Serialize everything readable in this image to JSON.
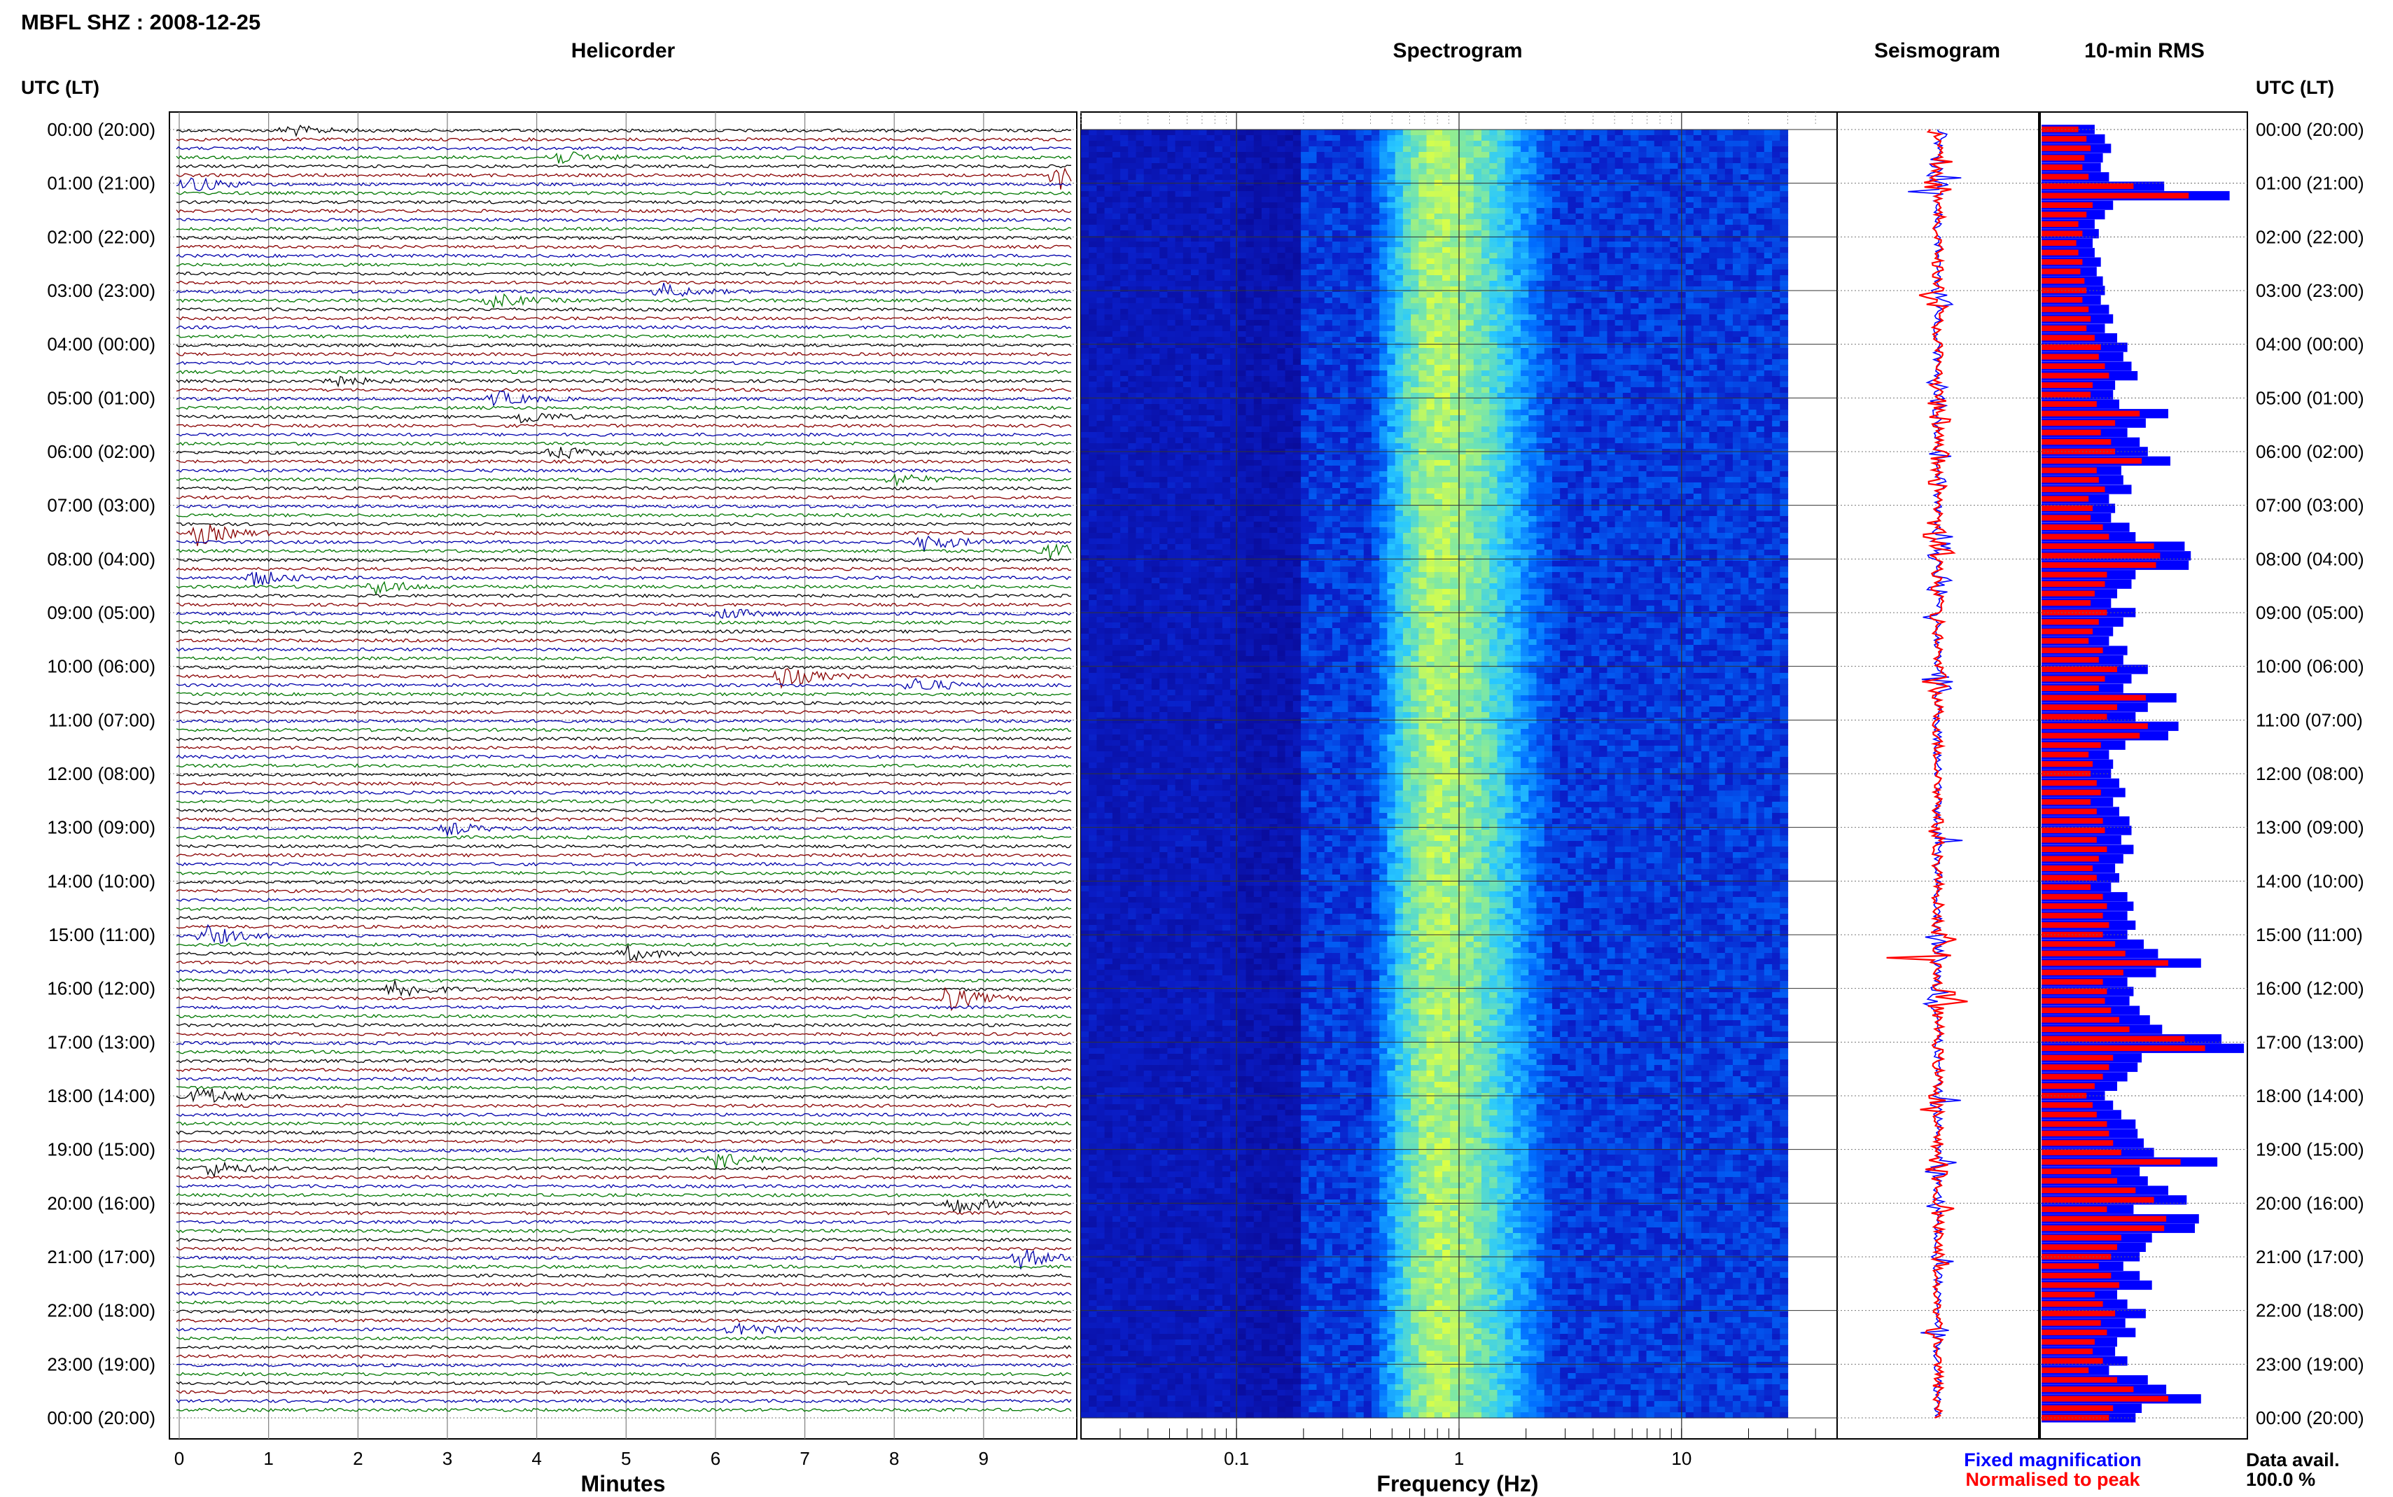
{
  "header": {
    "station": "MBFL SHZ : 2008-12-25"
  },
  "panels": {
    "helicorder_title": "Helicorder",
    "spectrogram_title": "Spectrogram",
    "seismogram_title": "Seismogram",
    "rms_title": "10-min RMS"
  },
  "axes": {
    "time_header_left": "UTC (LT)",
    "time_header_right": "UTC (LT)",
    "minutes_label": "Minutes",
    "frequency_label": "Frequency (Hz)"
  },
  "legend": {
    "fixed_label": "Fixed magnification",
    "fixed_color": "#0000ff",
    "normalised_label": "Normalised to peak",
    "normalised_color": "#ff0000",
    "avail_label": "Data avail.",
    "avail_value": "100.0 %"
  },
  "colors": {
    "trace_cycle": [
      "#000000",
      "#880000",
      "#0000aa",
      "#007700"
    ],
    "spectrogram_dark": "#0a0ab4",
    "spectrogram_mid": "#0078ff",
    "spectrogram_cyan": "#28d2ff",
    "spectrogram_peak": "#d2ff3c",
    "grid": "#808080"
  },
  "chart_data": [
    {
      "type": "line",
      "title": "Helicorder",
      "xlabel": "Minutes",
      "ylabel": "UTC (LT)",
      "x_ticks": [
        "0",
        "1",
        "2",
        "3",
        "4",
        "5",
        "6",
        "7",
        "8",
        "9"
      ],
      "xlim": [
        0,
        10
      ],
      "y_ticks": [
        "00:00 (20:00)",
        "01:00 (21:00)",
        "02:00 (22:00)",
        "03:00 (23:00)",
        "04:00 (00:00)",
        "05:00 (01:00)",
        "06:00 (02:00)",
        "07:00 (03:00)",
        "08:00 (04:00)",
        "09:00 (05:00)",
        "10:00 (06:00)",
        "11:00 (07:00)",
        "12:00 (08:00)",
        "13:00 (09:00)",
        "14:00 (10:00)",
        "15:00 (11:00)",
        "16:00 (12:00)",
        "17:00 (13:00)",
        "18:00 (14:00)",
        "19:00 (15:00)",
        "20:00 (16:00)",
        "21:00 (17:00)",
        "22:00 (18:00)",
        "23:00 (19:00)",
        "00:00 (20:00)"
      ],
      "traces_per_hour": 6,
      "events": [
        {
          "hour_index": 0,
          "trace": 0,
          "minute": 1.2,
          "amp": 0.4
        },
        {
          "hour_index": 0,
          "trace": 3,
          "minute": 4.2,
          "amp": 0.5
        },
        {
          "hour_index": 1,
          "trace": 0,
          "minute": 0.1,
          "amp": 0.6
        },
        {
          "hour_index": 0,
          "trace": 5,
          "minute": 9.8,
          "amp": 1.1
        },
        {
          "hour_index": 3,
          "trace": 0,
          "minute": 5.4,
          "amp": 0.5
        },
        {
          "hour_index": 3,
          "trace": 1,
          "minute": 3.5,
          "amp": 0.5
        },
        {
          "hour_index": 4,
          "trace": 4,
          "minute": 1.6,
          "amp": 0.5
        },
        {
          "hour_index": 5,
          "trace": 0,
          "minute": 3.5,
          "amp": 0.6
        },
        {
          "hour_index": 5,
          "trace": 2,
          "minute": 3.8,
          "amp": 0.5
        },
        {
          "hour_index": 6,
          "trace": 0,
          "minute": 4.2,
          "amp": 0.5
        },
        {
          "hour_index": 6,
          "trace": 3,
          "minute": 8.0,
          "amp": 0.4
        },
        {
          "hour_index": 7,
          "trace": 3,
          "minute": 0.2,
          "amp": 0.8
        },
        {
          "hour_index": 7,
          "trace": 4,
          "minute": 8.3,
          "amp": 0.7
        },
        {
          "hour_index": 7,
          "trace": 5,
          "minute": 9.7,
          "amp": 0.6
        },
        {
          "hour_index": 8,
          "trace": 2,
          "minute": 0.8,
          "amp": 0.6
        },
        {
          "hour_index": 8,
          "trace": 3,
          "minute": 2.2,
          "amp": 0.5
        },
        {
          "hour_index": 9,
          "trace": 0,
          "minute": 6.0,
          "amp": 0.5
        },
        {
          "hour_index": 10,
          "trace": 1,
          "minute": 6.7,
          "amp": 0.9
        },
        {
          "hour_index": 10,
          "trace": 2,
          "minute": 8.2,
          "amp": 0.6
        },
        {
          "hour_index": 13,
          "trace": 0,
          "minute": 3.0,
          "amp": 0.4
        },
        {
          "hour_index": 15,
          "trace": 0,
          "minute": 0.3,
          "amp": 0.7
        },
        {
          "hour_index": 15,
          "trace": 2,
          "minute": 5.0,
          "amp": 0.5
        },
        {
          "hour_index": 16,
          "trace": 0,
          "minute": 2.4,
          "amp": 0.7
        },
        {
          "hour_index": 16,
          "trace": 1,
          "minute": 8.5,
          "amp": 1.1
        },
        {
          "hour_index": 18,
          "trace": 0,
          "minute": 0.2,
          "amp": 0.8
        },
        {
          "hour_index": 19,
          "trace": 1,
          "minute": 6.0,
          "amp": 0.6
        },
        {
          "hour_index": 19,
          "trace": 2,
          "minute": 0.3,
          "amp": 0.6
        },
        {
          "hour_index": 20,
          "trace": 0,
          "minute": 8.6,
          "amp": 0.8
        },
        {
          "hour_index": 21,
          "trace": 0,
          "minute": 9.4,
          "amp": 0.7
        },
        {
          "hour_index": 22,
          "trace": 2,
          "minute": 6.2,
          "amp": 0.6
        }
      ]
    },
    {
      "type": "heatmap",
      "title": "Spectrogram",
      "xlabel": "Frequency (Hz)",
      "x_scale": "log",
      "x_ticks": [
        "0.1",
        "1",
        "10"
      ],
      "xlim": [
        0.02,
        50
      ],
      "peak_frequency_hz": 0.8,
      "high_energy_band_hz": [
        0.2,
        2
      ]
    },
    {
      "type": "line",
      "title": "Seismogram",
      "series": [
        {
          "name": "Fixed magnification",
          "color": "#0000ff"
        },
        {
          "name": "Normalised to peak",
          "color": "#ff0000"
        }
      ]
    },
    {
      "type": "bar",
      "title": "10-min RMS",
      "series": [
        {
          "name": "Fixed magnification",
          "color": "#0000ff",
          "values": [
            0.26,
            0.31,
            0.34,
            0.3,
            0.29,
            0.33,
            0.6,
            0.92,
            0.35,
            0.31,
            0.26,
            0.28,
            0.25,
            0.26,
            0.29,
            0.27,
            0.3,
            0.31,
            0.29,
            0.33,
            0.35,
            0.31,
            0.37,
            0.42,
            0.4,
            0.44,
            0.47,
            0.36,
            0.35,
            0.38,
            0.62,
            0.51,
            0.42,
            0.48,
            0.52,
            0.63,
            0.39,
            0.4,
            0.44,
            0.33,
            0.36,
            0.34,
            0.43,
            0.46,
            0.7,
            0.73,
            0.72,
            0.46,
            0.44,
            0.37,
            0.34,
            0.46,
            0.4,
            0.35,
            0.33,
            0.42,
            0.4,
            0.52,
            0.44,
            0.4,
            0.66,
            0.52,
            0.46,
            0.67,
            0.62,
            0.41,
            0.33,
            0.35,
            0.34,
            0.38,
            0.41,
            0.35,
            0.38,
            0.43,
            0.44,
            0.39,
            0.45,
            0.4,
            0.36,
            0.38,
            0.34,
            0.42,
            0.45,
            0.42,
            0.46,
            0.42,
            0.5,
            0.57,
            0.78,
            0.56,
            0.42,
            0.45,
            0.43,
            0.48,
            0.53,
            0.59,
            0.88,
            0.99,
            0.49,
            0.47,
            0.42,
            0.37,
            0.31,
            0.35,
            0.39,
            0.46,
            0.47,
            0.5,
            0.55,
            0.86,
            0.48,
            0.52,
            0.62,
            0.71,
            0.45,
            0.77,
            0.75,
            0.54,
            0.51,
            0.48,
            0.4,
            0.48,
            0.54,
            0.37,
            0.42,
            0.51,
            0.41,
            0.46,
            0.37,
            0.36,
            0.42,
            0.33,
            0.52,
            0.61,
            0.78,
            0.49,
            0.46
          ]
        },
        {
          "name": "Normalised to peak",
          "color": "#ff0000",
          "values": [
            0.18,
            0.22,
            0.24,
            0.21,
            0.2,
            0.23,
            0.45,
            0.72,
            0.25,
            0.22,
            0.18,
            0.2,
            0.17,
            0.18,
            0.2,
            0.19,
            0.21,
            0.22,
            0.2,
            0.23,
            0.24,
            0.22,
            0.26,
            0.29,
            0.28,
            0.31,
            0.33,
            0.25,
            0.24,
            0.27,
            0.48,
            0.36,
            0.29,
            0.34,
            0.36,
            0.49,
            0.27,
            0.28,
            0.31,
            0.23,
            0.25,
            0.24,
            0.3,
            0.33,
            0.55,
            0.58,
            0.56,
            0.32,
            0.31,
            0.26,
            0.24,
            0.32,
            0.28,
            0.25,
            0.23,
            0.3,
            0.28,
            0.37,
            0.31,
            0.28,
            0.51,
            0.37,
            0.32,
            0.52,
            0.48,
            0.29,
            0.23,
            0.25,
            0.24,
            0.27,
            0.29,
            0.24,
            0.27,
            0.3,
            0.31,
            0.27,
            0.32,
            0.28,
            0.25,
            0.27,
            0.24,
            0.3,
            0.32,
            0.3,
            0.33,
            0.3,
            0.36,
            0.41,
            0.62,
            0.4,
            0.3,
            0.32,
            0.31,
            0.34,
            0.38,
            0.43,
            0.7,
            0.8,
            0.35,
            0.33,
            0.3,
            0.26,
            0.22,
            0.25,
            0.27,
            0.32,
            0.33,
            0.35,
            0.39,
            0.68,
            0.34,
            0.37,
            0.46,
            0.55,
            0.32,
            0.61,
            0.6,
            0.39,
            0.37,
            0.34,
            0.28,
            0.34,
            0.38,
            0.26,
            0.3,
            0.36,
            0.29,
            0.32,
            0.26,
            0.25,
            0.3,
            0.23,
            0.37,
            0.45,
            0.62,
            0.35,
            0.33
          ]
        }
      ]
    }
  ]
}
